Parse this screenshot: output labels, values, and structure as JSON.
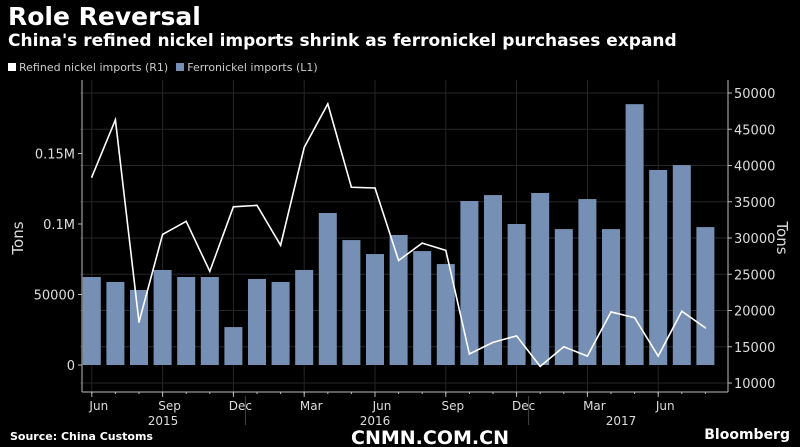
{
  "title": "Role Reversal",
  "subtitle": "China's refined nickel imports shrink as ferronickel purchases expand",
  "source": "Source: China Customs",
  "brand": "Bloomberg",
  "watermark": "CNMN.COM.CN",
  "colors": {
    "background": "#000000",
    "bars": "#7590b4",
    "line": "#ffffff",
    "grid": "#262626",
    "axis": "#bbbbbb"
  },
  "chart_data": {
    "type": "bar+line",
    "categories": [
      "Jun 2015",
      "Jul 2015",
      "Aug 2015",
      "Sep 2015",
      "Oct 2015",
      "Nov 2015",
      "Dec 2015",
      "Jan 2016",
      "Feb 2016",
      "Mar 2016",
      "Apr 2016",
      "May 2016",
      "Jun 2016",
      "Jul 2016",
      "Aug 2016",
      "Sep 2016",
      "Oct 2016",
      "Nov 2016",
      "Dec 2016",
      "Jan 2017",
      "Feb 2017",
      "Mar 2017",
      "Apr 2017",
      "May 2017",
      "Jun 2017",
      "Jul 2017",
      "Aug 2017"
    ],
    "x_tick_labels": [
      "Jun",
      "Sep",
      "Dec",
      "Mar",
      "Jun",
      "Sep",
      "Dec",
      "Mar",
      "Jun"
    ],
    "year_labels": [
      "2015",
      "2016",
      "2017"
    ],
    "series": [
      {
        "name": "Refined nickel imports (R1)",
        "type": "line",
        "axis": "right",
        "values": [
          38400,
          46300,
          18400,
          30500,
          32300,
          25400,
          34300,
          34500,
          29000,
          42500,
          48500,
          37000,
          36900,
          26900,
          29300,
          28300,
          14000,
          15600,
          16500,
          12300,
          15000,
          13700,
          19800,
          19000,
          13700,
          19900,
          17600
        ]
      },
      {
        "name": "Ferronickel imports (L1)",
        "type": "bar",
        "axis": "left",
        "values": [
          62400,
          58900,
          53200,
          67400,
          62400,
          62400,
          26900,
          61000,
          58900,
          67400,
          107800,
          88600,
          78700,
          92200,
          80800,
          71600,
          116300,
          120500,
          100000,
          122000,
          96400,
          117700,
          96400,
          185000,
          138300,
          141800,
          97800
        ]
      }
    ],
    "left_axis": {
      "label": "Tons",
      "ylim": [
        0,
        200000
      ],
      "ticks": [
        "0",
        "50000",
        "0.1M",
        "0.15M"
      ]
    },
    "right_axis": {
      "label": "Tons",
      "ylim": [
        10000,
        52000
      ],
      "ticks": [
        "10000",
        "15000",
        "20000",
        "25000",
        "30000",
        "35000",
        "40000",
        "45000",
        "50000"
      ]
    },
    "grid": true,
    "legend": "top-left"
  }
}
